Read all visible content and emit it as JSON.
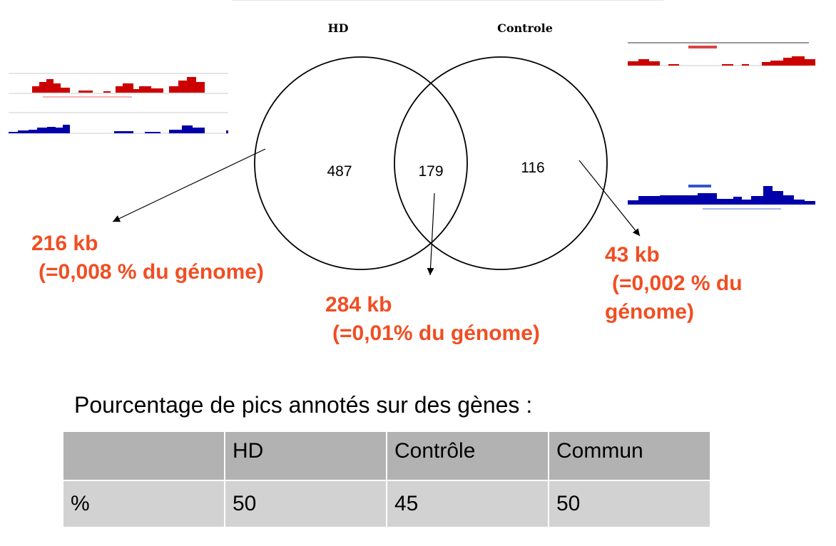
{
  "venn": {
    "set_a_label": "HD",
    "set_b_label": "Controle",
    "only_a_count": "487",
    "overlap_count": "179",
    "only_b_count": "116"
  },
  "annotations": {
    "left": {
      "size": "216 kb",
      "genome": "(=0,008 % du génome)"
    },
    "center": {
      "size": "284 kb",
      "genome": "(=0,01% du génome)"
    },
    "right": {
      "size": "43 kb",
      "genome_line1": "(=0,002 % du",
      "genome_line2": "génome)"
    }
  },
  "track_thumbnails": {
    "left_top_color": "#cc0000",
    "left_bottom_color": "#0000aa",
    "right_top_color": "#cc0000",
    "right_bottom_color": "#0000aa"
  },
  "table": {
    "caption": "Pourcentage de pics annotés sur des gènes :",
    "headers": [
      "",
      "HD",
      "Contrôle",
      "Commun"
    ],
    "rows": [
      [
        "%",
        "50",
        "45",
        "50"
      ]
    ]
  },
  "colors": {
    "annotation": "#f04e23",
    "header_bg": "#b2b2b2",
    "row_bg": "#d2d2d2"
  }
}
